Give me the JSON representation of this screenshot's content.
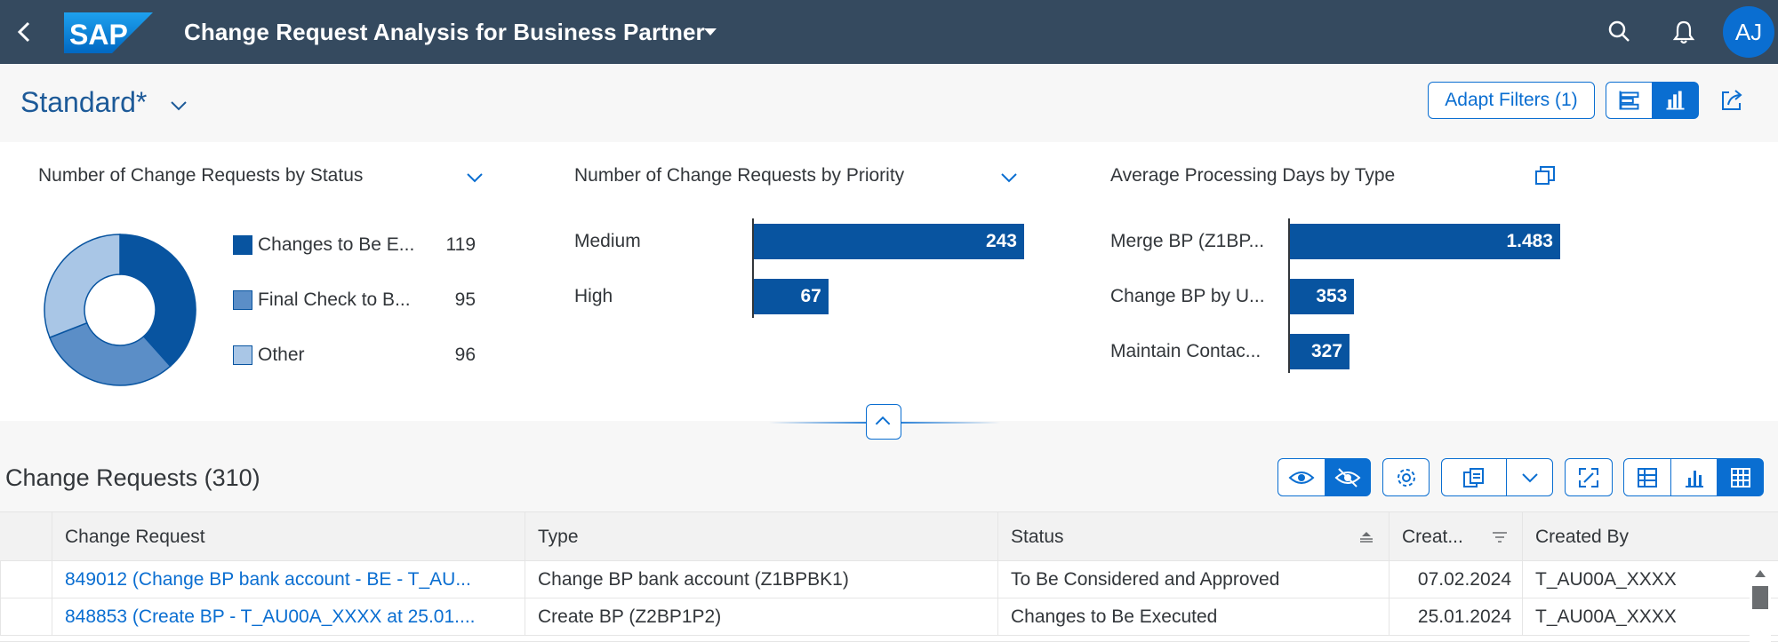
{
  "shell": {
    "logo_text": "SAP",
    "title": "Change Request Analysis for Business Partner",
    "avatar_initials": "AJ"
  },
  "header": {
    "variant": "Standard*",
    "adapt_filters": "Adapt Filters (1)"
  },
  "visual_filters": [
    {
      "title": "Number of Change Requests by Status",
      "type": "donut",
      "legend": [
        {
          "label": "Changes to Be E...",
          "value": "119",
          "color": "#0854a0"
        },
        {
          "label": "Final Check to B...",
          "value": "95",
          "color": "#5b8ec7"
        },
        {
          "label": "Other",
          "value": "96",
          "color": "#a9c6e6"
        }
      ]
    },
    {
      "title": "Number of Change Requests by Priority",
      "type": "bar",
      "bars": [
        {
          "label": "Medium",
          "value": "243"
        },
        {
          "label": "High",
          "value": "67"
        }
      ]
    },
    {
      "title": "Average Processing Days by Type",
      "type": "bar",
      "bars": [
        {
          "label": "Merge BP (Z1BP...",
          "value": "1.483"
        },
        {
          "label": "Change BP by U...",
          "value": "353"
        },
        {
          "label": "Maintain Contac...",
          "value": "327"
        }
      ]
    }
  ],
  "chart_data": [
    {
      "type": "pie",
      "title": "Number of Change Requests by Status",
      "categories": [
        "Changes to Be E...",
        "Final Check to B...",
        "Other"
      ],
      "values": [
        119,
        95,
        96
      ]
    },
    {
      "type": "bar",
      "title": "Number of Change Requests by Priority",
      "categories": [
        "Medium",
        "High"
      ],
      "values": [
        243,
        67
      ]
    },
    {
      "type": "bar",
      "title": "Average Processing Days by Type",
      "categories": [
        "Merge BP (Z1BP...",
        "Change BP by U...",
        "Maintain Contac..."
      ],
      "values": [
        1483,
        353,
        327
      ]
    }
  ],
  "table": {
    "title": "Change Requests (310)",
    "columns": [
      "Change Request",
      "Type",
      "Status",
      "Creat...",
      "Created By"
    ],
    "rows": [
      [
        "849012 (Change BP bank account - BE - T_AU...",
        "Change BP bank account (Z1BPBK1)",
        "To Be Considered and Approved",
        "07.02.2024",
        "T_AU00A_XXXX"
      ],
      [
        "848853 (Create BP - T_AU00A_XXXX at 25.01....",
        "Create BP (Z2BP1P2)",
        "Changes to Be Executed",
        "25.01.2024",
        "T_AU00A_XXXX"
      ]
    ]
  }
}
